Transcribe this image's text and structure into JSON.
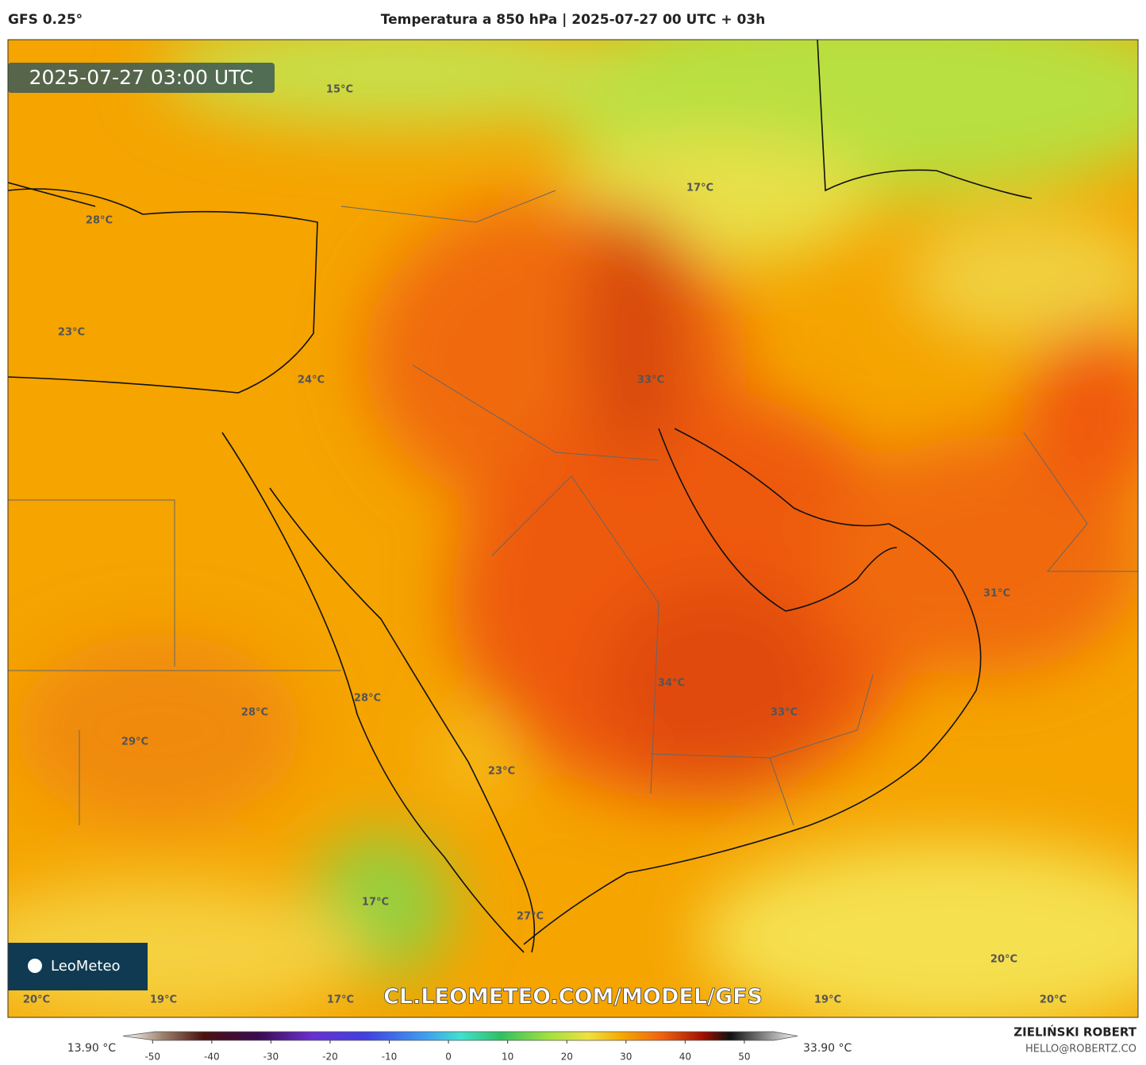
{
  "header": {
    "model": "GFS 0.25°",
    "title": "Temperatura a 850 hPa | 2025-07-27 00 UTC + 03h"
  },
  "timestamp": "2025-07-27 03:00 UTC",
  "map_labels": [
    "15°C",
    "28°C",
    "23°C",
    "24°C",
    "17°C",
    "33°C",
    "31°C",
    "34°C",
    "33°C",
    "28°C",
    "28°C",
    "29°C",
    "23°C",
    "17°C",
    "27°C",
    "20°C",
    "20°C",
    "19°C",
    "17°C",
    "19°C",
    "20°C"
  ],
  "logo": "LeoMeteo",
  "watermark": "CL.LEOMETEO.COM/MODEL/GFS",
  "colorbar": {
    "min_label": "13.90 °C",
    "max_label": "33.90 °C",
    "lim": [
      -55,
      59
    ],
    "ticks": [
      -50,
      -40,
      -30,
      -20,
      -10,
      0,
      10,
      20,
      30,
      40,
      50
    ]
  },
  "footer": {
    "author": "ZIELIŃSKI ROBERT",
    "email": "HELLO@ROBERTZ.CO"
  }
}
